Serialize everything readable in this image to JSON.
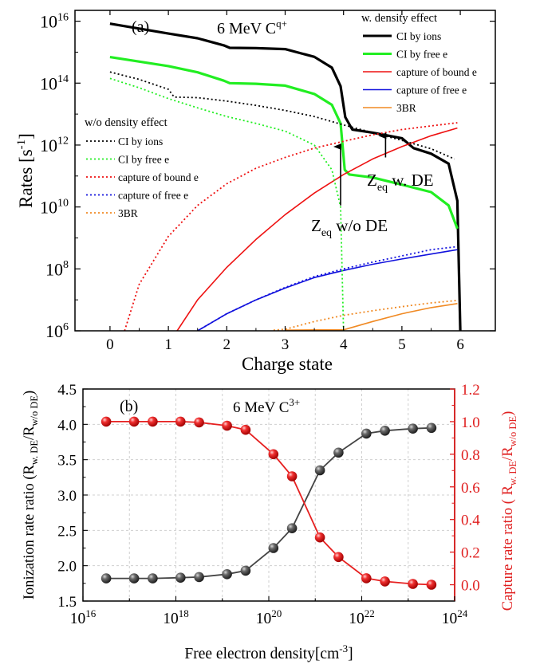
{
  "chart_data": [
    {
      "panel": "(a)",
      "type": "line",
      "title": "6 MeV C",
      "title_sup": "q+",
      "xlabel": "Charge state",
      "ylabel": "Rates [s",
      "ylabel_sup": "-1",
      "ylabel_end": "]",
      "xlim": [
        -0.6,
        6.6
      ],
      "ylim_log10": [
        6,
        16.35
      ],
      "yscale": "log",
      "xticks": [
        "0",
        "1",
        "2",
        "3",
        "4",
        "5",
        "6"
      ],
      "yticks": [
        {
          "base": "10",
          "exp": "6",
          "v": 6
        },
        {
          "base": "10",
          "exp": "8",
          "v": 8
        },
        {
          "base": "10",
          "exp": "10",
          "v": 10
        },
        {
          "base": "10",
          "exp": "12",
          "v": 12
        },
        {
          "base": "10",
          "exp": "14",
          "v": 14
        },
        {
          "base": "10",
          "exp": "16",
          "v": 16
        }
      ],
      "legend_with_title": "w. density effect",
      "legend_without_title": "w/o density effect",
      "series": [
        {
          "name": "CI by ions",
          "group": "with",
          "color": "#000000",
          "dash": "",
          "width": 3.2,
          "points": [
            [
              0,
              15.92
            ],
            [
              1,
              15.6
            ],
            [
              1.5,
              15.45
            ],
            [
              1.95,
              15.22
            ],
            [
              2.05,
              15.14
            ],
            [
              2.5,
              15.13
            ],
            [
              3,
              15.1
            ],
            [
              3.5,
              14.85
            ],
            [
              3.8,
              14.5
            ],
            [
              3.95,
              13.9
            ],
            [
              4.03,
              12.9
            ],
            [
              4.15,
              12.5
            ],
            [
              4.5,
              12.4
            ],
            [
              5,
              12.22
            ],
            [
              5.2,
              11.9
            ],
            [
              5.5,
              11.72
            ],
            [
              5.8,
              11.4
            ],
            [
              5.95,
              10.2
            ],
            [
              6,
              6
            ]
          ]
        },
        {
          "name": "CI by free e",
          "group": "with",
          "color": "#22ee22",
          "dash": "",
          "width": 3.2,
          "points": [
            [
              0,
              14.84
            ],
            [
              1,
              14.55
            ],
            [
              1.5,
              14.35
            ],
            [
              1.95,
              14.08
            ],
            [
              2.05,
              14.0
            ],
            [
              2.5,
              13.98
            ],
            [
              3,
              13.92
            ],
            [
              3.5,
              13.65
            ],
            [
              3.8,
              13.3
            ],
            [
              3.95,
              12.7
            ],
            [
              4.02,
              11.2
            ],
            [
              4.1,
              11.05
            ],
            [
              4.5,
              10.95
            ],
            [
              5,
              10.72
            ],
            [
              5.5,
              10.48
            ],
            [
              5.8,
              10.05
            ],
            [
              5.95,
              9.3
            ]
          ]
        },
        {
          "name": "capture of bound e",
          "group": "with",
          "color": "#ee1111",
          "dash": "",
          "width": 1.6,
          "points": [
            [
              1.15,
              6
            ],
            [
              1.5,
              7.0
            ],
            [
              2,
              8.05
            ],
            [
              2.5,
              8.95
            ],
            [
              3,
              9.75
            ],
            [
              3.5,
              10.45
            ],
            [
              4,
              11.05
            ],
            [
              4.5,
              11.55
            ],
            [
              5,
              11.95
            ],
            [
              5.5,
              12.3
            ],
            [
              5.95,
              12.55
            ]
          ]
        },
        {
          "name": "capture of free e",
          "group": "with",
          "color": "#1111dd",
          "dash": "",
          "width": 1.6,
          "points": [
            [
              1.5,
              6
            ],
            [
              2,
              6.55
            ],
            [
              2.5,
              7.0
            ],
            [
              3,
              7.38
            ],
            [
              3.5,
              7.72
            ],
            [
              4,
              7.95
            ],
            [
              4.5,
              8.15
            ],
            [
              5,
              8.32
            ],
            [
              5.5,
              8.48
            ],
            [
              5.95,
              8.62
            ]
          ]
        },
        {
          "name": "3BR",
          "group": "with",
          "color": "#f08a24",
          "dash": "",
          "width": 1.6,
          "points": [
            [
              3.0,
              6.02
            ],
            [
              3.5,
              6.03
            ],
            [
              4,
              6.03
            ],
            [
              4.5,
              6.3
            ],
            [
              5,
              6.55
            ],
            [
              5.5,
              6.75
            ],
            [
              5.95,
              6.88
            ]
          ]
        },
        {
          "name": "CI by ions",
          "group": "without",
          "color": "#000000",
          "dash": "2,3",
          "width": 1.8,
          "points": [
            [
              0,
              14.36
            ],
            [
              0.5,
              14.12
            ],
            [
              1,
              13.8
            ],
            [
              1.1,
              13.55
            ],
            [
              1.5,
              13.53
            ],
            [
              2,
              13.42
            ],
            [
              2.5,
              13.28
            ],
            [
              3,
              13.12
            ],
            [
              3.5,
              12.92
            ],
            [
              4,
              12.65
            ],
            [
              4.5,
              12.4
            ],
            [
              5,
              12.15
            ],
            [
              5.5,
              11.88
            ],
            [
              5.9,
              11.55
            ]
          ]
        },
        {
          "name": "CI by free e",
          "group": "without",
          "color": "#22ee22",
          "dash": "2,3",
          "width": 1.8,
          "points": [
            [
              0,
              14.15
            ],
            [
              0.5,
              13.85
            ],
            [
              1,
              13.5
            ],
            [
              1.5,
              13.2
            ],
            [
              2,
              12.92
            ],
            [
              2.5,
              12.7
            ],
            [
              3,
              12.45
            ],
            [
              3.5,
              12.0
            ],
            [
              3.8,
              11.2
            ],
            [
              3.95,
              10.0
            ],
            [
              4.0,
              6.0
            ]
          ]
        },
        {
          "name": "capture of bound e",
          "group": "without",
          "color": "#ee1111",
          "dash": "2,3",
          "width": 1.8,
          "points": [
            [
              0.25,
              6
            ],
            [
              0.5,
              7.5
            ],
            [
              1,
              9.05
            ],
            [
              1.5,
              10.05
            ],
            [
              2,
              10.75
            ],
            [
              2.5,
              11.25
            ],
            [
              3,
              11.6
            ],
            [
              3.5,
              11.9
            ],
            [
              4,
              12.12
            ],
            [
              4.5,
              12.33
            ],
            [
              5,
              12.5
            ],
            [
              5.5,
              12.62
            ],
            [
              5.95,
              12.72
            ]
          ]
        },
        {
          "name": "capture of free e",
          "group": "without",
          "color": "#1111dd",
          "dash": "2,3",
          "width": 1.8,
          "points": [
            [
              1.5,
              6
            ],
            [
              2,
              6.55
            ],
            [
              2.5,
              7.0
            ],
            [
              3,
              7.4
            ],
            [
              3.5,
              7.75
            ],
            [
              4,
              8.0
            ],
            [
              4.5,
              8.22
            ],
            [
              5,
              8.42
            ],
            [
              5.5,
              8.62
            ],
            [
              5.95,
              8.72
            ]
          ]
        },
        {
          "name": "3BR",
          "group": "without",
          "color": "#f08a24",
          "dash": "2,3",
          "width": 1.8,
          "points": [
            [
              2.8,
              6.02
            ],
            [
              3,
              6.05
            ],
            [
              3.5,
              6.3
            ],
            [
              4,
              6.5
            ],
            [
              4.5,
              6.65
            ],
            [
              5,
              6.78
            ],
            [
              5.5,
              6.9
            ],
            [
              5.95,
              6.98
            ]
          ]
        }
      ],
      "annotations": [
        {
          "text": "Z",
          "sub": "eq",
          "rest": " w/o DE",
          "arrow_from": [
            3.95,
            10.05
          ],
          "arrow_to": [
            3.95,
            12.0
          ]
        },
        {
          "text": "Z",
          "sub": "eq",
          "rest": " w. DE",
          "arrow_from": [
            4.72,
            11.6
          ],
          "arrow_to": [
            4.72,
            12.35
          ]
        }
      ]
    },
    {
      "panel": "(b)",
      "type": "scatter",
      "title": "6 MeV C",
      "title_sup": "3+",
      "xlabel": "Free electron density[cm",
      "xlabel_sup": "-3",
      "xlabel_end": "]",
      "xscale": "log",
      "xlim_log10": [
        16,
        24
      ],
      "xticks": [
        {
          "base": "10",
          "exp": "16",
          "v": 16
        },
        {
          "base": "10",
          "exp": "18",
          "v": 18
        },
        {
          "base": "10",
          "exp": "20",
          "v": 20
        },
        {
          "base": "10",
          "exp": "22",
          "v": 22
        },
        {
          "base": "10",
          "exp": "24",
          "v": 24
        }
      ],
      "grid": true,
      "left_axis": {
        "label_main": "Ionization rate ratio (R",
        "label_sub1": "w. DE",
        "label_mid": "/R",
        "label_sub2": "w/o DE",
        "label_end": ")",
        "ylim": [
          1.5,
          4.5
        ],
        "ticks": [
          "1.5",
          "2.0",
          "2.5",
          "3.0",
          "3.5",
          "4.0",
          "4.5"
        ],
        "color": "#000000"
      },
      "right_axis": {
        "label_main": "Capture rate ratio ( R",
        "label_sub1": "w. DE",
        "label_mid": "/R",
        "label_sub2": "w/o DE",
        "label_end": ")",
        "ylim": [
          -0.1,
          1.2
        ],
        "ticks": [
          "0.0",
          "0.2",
          "0.4",
          "0.6",
          "0.8",
          "1.0",
          "1.2"
        ],
        "color": "#e02020"
      },
      "series": [
        {
          "name": "Ionization rate ratio",
          "axis": "left",
          "color": "#444444",
          "x_log10": [
            16.5,
            17.1,
            17.5,
            18.1,
            18.5,
            19.1,
            19.5,
            20.1,
            20.5,
            21.1,
            21.5,
            22.1,
            22.5,
            23.1,
            23.5
          ],
          "y": [
            1.82,
            1.82,
            1.82,
            1.83,
            1.84,
            1.88,
            1.93,
            2.25,
            2.53,
            3.35,
            3.6,
            3.87,
            3.91,
            3.94,
            3.95
          ]
        },
        {
          "name": "Capture rate ratio",
          "axis": "right",
          "color": "#e62020",
          "x_log10": [
            16.5,
            17.1,
            17.5,
            18.1,
            18.5,
            19.1,
            19.5,
            20.1,
            20.5,
            21.1,
            21.5,
            22.1,
            22.5,
            23.1,
            23.5
          ],
          "y": [
            1.0,
            1.0,
            1.0,
            1.0,
            0.995,
            0.975,
            0.95,
            0.8,
            0.665,
            0.29,
            0.17,
            0.04,
            0.02,
            0.005,
            0.0
          ]
        }
      ]
    }
  ]
}
